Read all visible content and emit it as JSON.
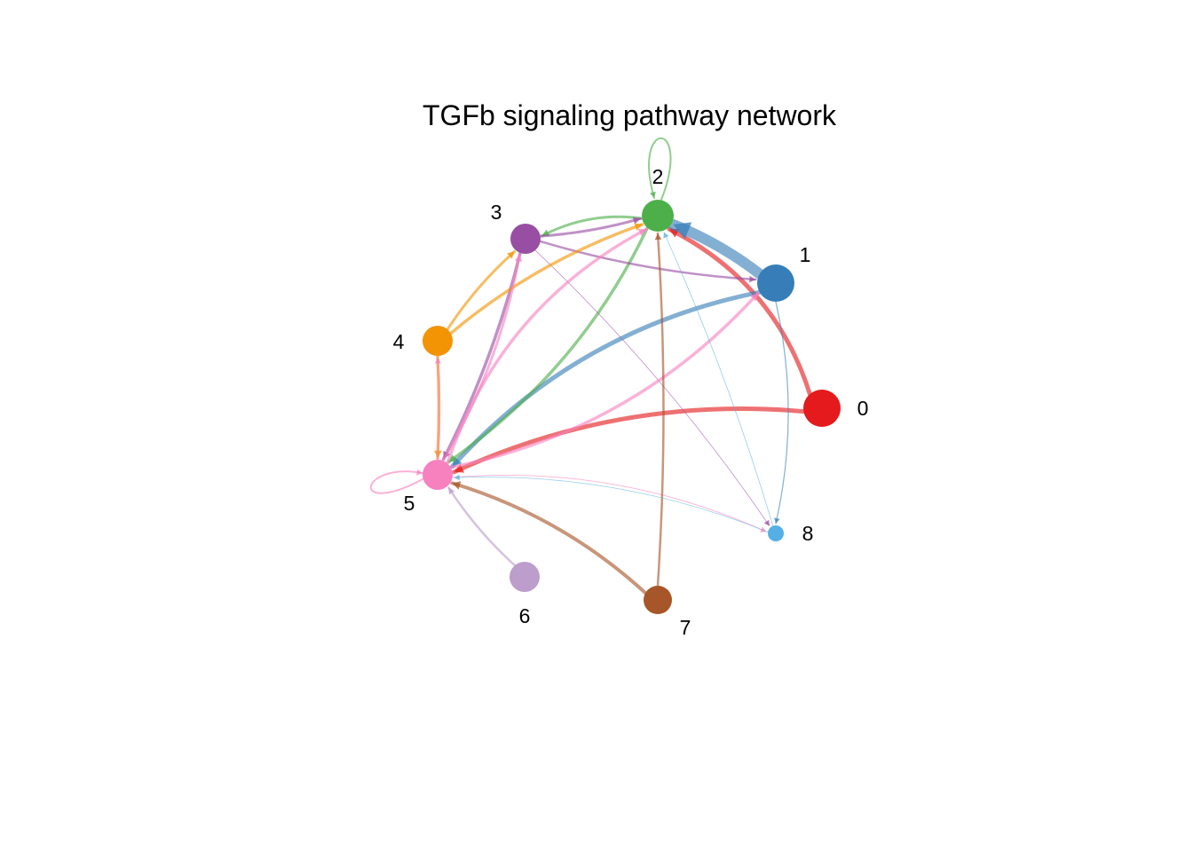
{
  "title": "TGFb signaling pathway network",
  "nodes": [
    {
      "id": "0",
      "label": "0",
      "color": "#E41A1C"
    },
    {
      "id": "1",
      "label": "1",
      "color": "#377EB8"
    },
    {
      "id": "2",
      "label": "2",
      "color": "#4DAF4A"
    },
    {
      "id": "3",
      "label": "3",
      "color": "#984EA3"
    },
    {
      "id": "4",
      "label": "4",
      "color": "#F29403"
    },
    {
      "id": "5",
      "label": "5",
      "color": "#F781BF"
    },
    {
      "id": "6",
      "label": "6",
      "color": "#BC9DCC"
    },
    {
      "id": "7",
      "label": "7",
      "color": "#A65628"
    },
    {
      "id": "8",
      "label": "8",
      "color": "#54B0E4"
    }
  ],
  "edges": [
    {
      "from": "0",
      "to": "2"
    },
    {
      "from": "0",
      "to": "5"
    },
    {
      "from": "1",
      "to": "2"
    },
    {
      "from": "1",
      "to": "5"
    },
    {
      "from": "1",
      "to": "8"
    },
    {
      "from": "2",
      "to": "2"
    },
    {
      "from": "2",
      "to": "3"
    },
    {
      "from": "2",
      "to": "5"
    },
    {
      "from": "3",
      "to": "2"
    },
    {
      "from": "3",
      "to": "5"
    },
    {
      "from": "3",
      "to": "8"
    },
    {
      "from": "3",
      "to": "1"
    },
    {
      "from": "4",
      "to": "2"
    },
    {
      "from": "4",
      "to": "3"
    },
    {
      "from": "4",
      "to": "5"
    },
    {
      "from": "5",
      "to": "5"
    },
    {
      "from": "5",
      "to": "1"
    },
    {
      "from": "5",
      "to": "2"
    },
    {
      "from": "5",
      "to": "3"
    },
    {
      "from": "5",
      "to": "4"
    },
    {
      "from": "5",
      "to": "8"
    },
    {
      "from": "6",
      "to": "5"
    },
    {
      "from": "7",
      "to": "2"
    },
    {
      "from": "7",
      "to": "5"
    },
    {
      "from": "8",
      "to": "2"
    },
    {
      "from": "8",
      "to": "5"
    }
  ]
}
